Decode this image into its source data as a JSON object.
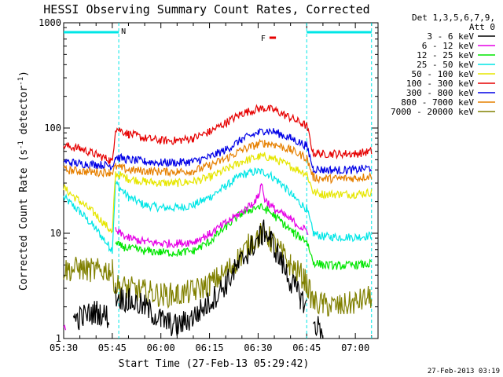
{
  "chart_data": {
    "type": "line",
    "title": "HESSI Observing Summary Count Rates, Corrected",
    "xlabel": "Start Time (27-Feb-13 05:29:42)",
    "ylabel": "Corrected Count Rate (s",
    "ylabel_sup1": "-1",
    "ylabel_mid": " detector",
    "ylabel_sup2": "-1",
    "ylabel_end": ")",
    "y_scale": "log",
    "ylim": [
      1,
      1000
    ],
    "xlim_min": [
      0,
      97
    ],
    "x_ticks": [
      {
        "m": 0,
        "label": "05:30"
      },
      {
        "m": 15,
        "label": "05:45"
      },
      {
        "m": 30,
        "label": "06:00"
      },
      {
        "m": 45,
        "label": "06:15"
      },
      {
        "m": 60,
        "label": "06:30"
      },
      {
        "m": 75,
        "label": "06:45"
      },
      {
        "m": 90,
        "label": "07:00"
      }
    ],
    "y_ticks": [
      {
        "v": 1,
        "label": "1"
      },
      {
        "v": 10,
        "label": "10"
      },
      {
        "v": 100,
        "label": "100"
      },
      {
        "v": 1000,
        "label": "1000"
      }
    ],
    "night_bars": [
      {
        "label": "N",
        "from": 0,
        "to": 17
      },
      {
        "label": "",
        "from": 75,
        "to": 95
      }
    ],
    "flare_marker": {
      "label": "F",
      "from": 63.5,
      "to": 65.5
    },
    "boundaries_min": [
      17,
      75,
      95
    ],
    "legend": {
      "header1": "Det 1,3,5,6,7,9,",
      "header2": "Att 0",
      "position": "right"
    },
    "series": [
      {
        "name": "3 - 6 keV",
        "color": "#000000",
        "points": [
          [
            0,
            null
          ],
          [
            3,
            1.5
          ],
          [
            10,
            1.8
          ],
          [
            14,
            1.6
          ],
          [
            15,
            null
          ],
          [
            16,
            2.5
          ],
          [
            20,
            2.3
          ],
          [
            25,
            2.0
          ],
          [
            30,
            1.5
          ],
          [
            35,
            1.3
          ],
          [
            40,
            1.6
          ],
          [
            45,
            2.2
          ],
          [
            50,
            3.3
          ],
          [
            55,
            5.5
          ],
          [
            58,
            7.5
          ],
          [
            61,
            9.5
          ],
          [
            62,
            10.5
          ],
          [
            64,
            8.5
          ],
          [
            67,
            5.5
          ],
          [
            70,
            3.5
          ],
          [
            73,
            2.5
          ],
          [
            75,
            2.0
          ],
          [
            76,
            null
          ],
          [
            77,
            1.4
          ],
          [
            80,
            1.2
          ],
          [
            81,
            null
          ]
        ]
      },
      {
        "name": "6 - 12 keV",
        "color": "#e600e6",
        "points": [
          [
            0,
            1.25
          ],
          [
            0.6,
            1.25
          ],
          [
            0.7,
            null
          ],
          [
            16,
            10.5
          ],
          [
            20,
            9.0
          ],
          [
            25,
            8.3
          ],
          [
            30,
            8.0
          ],
          [
            35,
            8.0
          ],
          [
            40,
            8.3
          ],
          [
            45,
            9.8
          ],
          [
            50,
            12.5
          ],
          [
            55,
            16.0
          ],
          [
            58,
            19.0
          ],
          [
            60,
            22.0
          ],
          [
            61,
            30.0
          ],
          [
            62,
            21.0
          ],
          [
            65,
            17.0
          ],
          [
            70,
            13.5
          ],
          [
            74,
            11.0
          ],
          [
            75.5,
            10.5
          ],
          [
            76,
            null
          ]
        ]
      },
      {
        "name": "12 - 25 keV",
        "color": "#00e600",
        "points": [
          [
            0,
            null
          ],
          [
            16,
            7.8
          ],
          [
            20,
            7.2
          ],
          [
            25,
            6.8
          ],
          [
            30,
            6.6
          ],
          [
            35,
            6.5
          ],
          [
            40,
            6.8
          ],
          [
            45,
            8.3
          ],
          [
            50,
            11.5
          ],
          [
            55,
            15.5
          ],
          [
            60,
            18.0
          ],
          [
            63,
            16.5
          ],
          [
            67,
            13.0
          ],
          [
            71,
            10.0
          ],
          [
            75,
            8.5
          ],
          [
            77,
            5.3
          ],
          [
            80,
            5.0
          ],
          [
            85,
            4.9
          ],
          [
            90,
            5.0
          ],
          [
            95,
            5.1
          ]
        ]
      },
      {
        "name": "25 - 50 keV",
        "color": "#00e6e6",
        "points": [
          [
            0,
            22
          ],
          [
            5,
            16
          ],
          [
            10,
            11
          ],
          [
            14,
            7.5
          ],
          [
            15,
            7.0
          ],
          [
            16,
            30
          ],
          [
            20,
            22
          ],
          [
            25,
            18.5
          ],
          [
            30,
            17.5
          ],
          [
            35,
            17.5
          ],
          [
            40,
            18.5
          ],
          [
            45,
            22
          ],
          [
            50,
            28
          ],
          [
            55,
            36
          ],
          [
            60,
            39
          ],
          [
            63,
            37
          ],
          [
            67,
            30
          ],
          [
            71,
            22
          ],
          [
            75,
            17
          ],
          [
            77,
            10
          ],
          [
            80,
            9.3
          ],
          [
            85,
            9.2
          ],
          [
            90,
            9.2
          ],
          [
            95,
            9.5
          ]
        ]
      },
      {
        "name": "50 - 100 keV",
        "color": "#e6e600",
        "points": [
          [
            0,
            27
          ],
          [
            5,
            20
          ],
          [
            10,
            15
          ],
          [
            14,
            11
          ],
          [
            15,
            10
          ],
          [
            16,
            37
          ],
          [
            20,
            33
          ],
          [
            25,
            31
          ],
          [
            30,
            30
          ],
          [
            35,
            30
          ],
          [
            40,
            31
          ],
          [
            45,
            34
          ],
          [
            50,
            40
          ],
          [
            55,
            48
          ],
          [
            60,
            53
          ],
          [
            62,
            54
          ],
          [
            65,
            51
          ],
          [
            70,
            43
          ],
          [
            75,
            37
          ],
          [
            77,
            24.5
          ],
          [
            80,
            23.5
          ],
          [
            85,
            23.5
          ],
          [
            90,
            23.5
          ],
          [
            95,
            24.5
          ]
        ]
      },
      {
        "name": "100 - 300 keV",
        "color": "#e60000",
        "points": [
          [
            0,
            68
          ],
          [
            5,
            64
          ],
          [
            10,
            56
          ],
          [
            14,
            50
          ],
          [
            15,
            48
          ],
          [
            16,
            100
          ],
          [
            20,
            88
          ],
          [
            25,
            80
          ],
          [
            30,
            76
          ],
          [
            35,
            76
          ],
          [
            40,
            80
          ],
          [
            45,
            92
          ],
          [
            50,
            112
          ],
          [
            55,
            138
          ],
          [
            60,
            152
          ],
          [
            62,
            154
          ],
          [
            65,
            148
          ],
          [
            70,
            125
          ],
          [
            75,
            105
          ],
          [
            77,
            58
          ],
          [
            80,
            57
          ],
          [
            85,
            57
          ],
          [
            90,
            57
          ],
          [
            95,
            60
          ]
        ]
      },
      {
        "name": "300 - 800 keV",
        "color": "#0000e6",
        "points": [
          [
            0,
            48
          ],
          [
            5,
            46
          ],
          [
            10,
            45
          ],
          [
            14,
            44
          ],
          [
            15,
            44
          ],
          [
            16,
            53
          ],
          [
            20,
            50
          ],
          [
            25,
            48
          ],
          [
            30,
            47
          ],
          [
            35,
            47
          ],
          [
            40,
            48
          ],
          [
            45,
            53
          ],
          [
            50,
            62
          ],
          [
            55,
            78
          ],
          [
            60,
            90
          ],
          [
            62,
            95
          ],
          [
            65,
            92
          ],
          [
            70,
            80
          ],
          [
            75,
            68
          ],
          [
            77,
            41
          ],
          [
            80,
            40
          ],
          [
            85,
            40
          ],
          [
            90,
            40
          ],
          [
            95,
            42
          ]
        ]
      },
      {
        "name": "800 - 7000 keV",
        "color": "#e68000",
        "points": [
          [
            0,
            40
          ],
          [
            5,
            39
          ],
          [
            10,
            38
          ],
          [
            14,
            38
          ],
          [
            15,
            38
          ],
          [
            16,
            43
          ],
          [
            20,
            40
          ],
          [
            25,
            39
          ],
          [
            30,
            38.5
          ],
          [
            35,
            38.5
          ],
          [
            40,
            39
          ],
          [
            45,
            44
          ],
          [
            50,
            51
          ],
          [
            55,
            62
          ],
          [
            60,
            70
          ],
          [
            62,
            72
          ],
          [
            65,
            70
          ],
          [
            70,
            62
          ],
          [
            75,
            52
          ],
          [
            77,
            34
          ],
          [
            80,
            33
          ],
          [
            85,
            33
          ],
          [
            90,
            33.5
          ],
          [
            95,
            35
          ]
        ]
      },
      {
        "name": "7000 - 20000 keV",
        "color": "#808000",
        "points": [
          [
            0,
            4.5
          ],
          [
            5,
            4.6
          ],
          [
            10,
            4.4
          ],
          [
            14,
            4.5
          ],
          [
            15,
            4.3
          ],
          [
            16,
            3.2
          ],
          [
            20,
            3.0
          ],
          [
            25,
            2.8
          ],
          [
            30,
            2.6
          ],
          [
            35,
            2.6
          ],
          [
            40,
            2.8
          ],
          [
            45,
            3.3
          ],
          [
            50,
            4.2
          ],
          [
            55,
            6.3
          ],
          [
            58,
            8.3
          ],
          [
            61,
            9.8
          ],
          [
            63,
            9.3
          ],
          [
            66,
            7.2
          ],
          [
            70,
            5.0
          ],
          [
            74,
            3.8
          ],
          [
            75,
            3.3
          ],
          [
            77,
            2.2
          ],
          [
            80,
            2.1
          ],
          [
            85,
            2.0
          ],
          [
            90,
            2.2
          ],
          [
            95,
            2.5
          ]
        ]
      }
    ]
  },
  "footer": {
    "timestamp": "27-Feb-2013 03:19"
  }
}
